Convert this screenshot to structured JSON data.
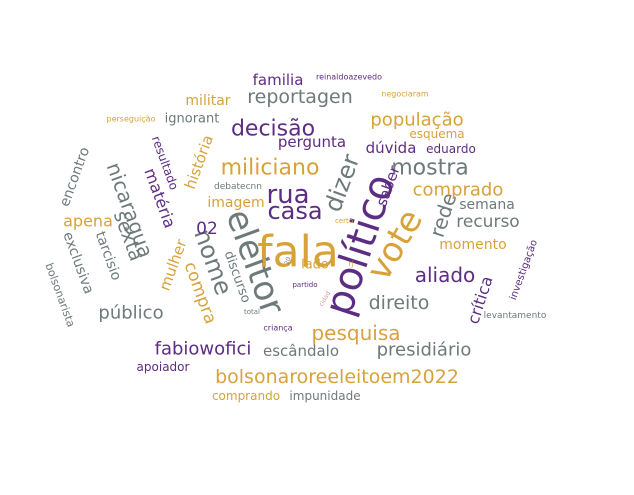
{
  "palette": {
    "purple": "#5c2d82",
    "gold": "#d8a23a",
    "gray": "#6e7a7a",
    "rose": "#d99aa0"
  },
  "words": [
    {
      "text": "fala",
      "color": "gold"
    },
    {
      "text": "político",
      "color": "purple"
    },
    {
      "text": "eleitor",
      "color": "gray"
    },
    {
      "text": "vote",
      "color": "gold"
    },
    {
      "text": "rua",
      "color": "purple"
    },
    {
      "text": "casa",
      "color": "purple"
    },
    {
      "text": "nome",
      "color": "gray"
    },
    {
      "text": "dizer",
      "color": "gray"
    },
    {
      "text": "miliciano",
      "color": "gold"
    },
    {
      "text": "decisão",
      "color": "purple"
    },
    {
      "text": "mostra",
      "color": "gray"
    },
    {
      "text": "rede",
      "color": "gray"
    },
    {
      "text": "nicaragua",
      "color": "gray"
    },
    {
      "text": "aliado",
      "color": "purple"
    },
    {
      "text": "pesquisa",
      "color": "gold"
    },
    {
      "text": "direito",
      "color": "gray"
    },
    {
      "text": "bolsonaroreeleitoem2022",
      "color": "gold"
    },
    {
      "text": "reportagen",
      "color": "gray"
    },
    {
      "text": "população",
      "color": "gold"
    },
    {
      "text": "comprado",
      "color": "gold"
    },
    {
      "text": "público",
      "color": "gray"
    },
    {
      "text": "fabiowofici",
      "color": "purple"
    },
    {
      "text": "presidiário",
      "color": "gray"
    },
    {
      "text": "sexta",
      "color": "gray"
    },
    {
      "text": "compra",
      "color": "gold"
    },
    {
      "text": "02",
      "color": "purple"
    },
    {
      "text": "recurso",
      "color": "gray"
    },
    {
      "text": "crítica",
      "color": "purple"
    },
    {
      "text": "apena",
      "color": "gold"
    },
    {
      "text": "escândalo",
      "color": "gray"
    },
    {
      "text": "familia",
      "color": "purple"
    },
    {
      "text": "pergunta",
      "color": "purple"
    },
    {
      "text": "dúvida",
      "color": "purple"
    },
    {
      "text": "história",
      "color": "gold"
    },
    {
      "text": "matéria",
      "color": "purple"
    },
    {
      "text": "mulher",
      "color": "gold"
    },
    {
      "text": "saber",
      "color": "purple"
    },
    {
      "text": "militar",
      "color": "gold"
    },
    {
      "text": "ignorant",
      "color": "gray"
    },
    {
      "text": "semana",
      "color": "gray"
    },
    {
      "text": "encontro",
      "color": "gray"
    },
    {
      "text": "exclusiva",
      "color": "gray"
    },
    {
      "text": "tarcisio",
      "color": "gray"
    },
    {
      "text": "momento",
      "color": "gold"
    },
    {
      "text": "imagem",
      "color": "gold"
    },
    {
      "text": "discurso",
      "color": "gray"
    },
    {
      "text": "lado",
      "color": "gold"
    },
    {
      "text": "esquema",
      "color": "gold"
    },
    {
      "text": "eduardo",
      "color": "purple"
    },
    {
      "text": "apoiador",
      "color": "purple"
    },
    {
      "text": "comprando",
      "color": "gold"
    },
    {
      "text": "impunidade",
      "color": "gray"
    },
    {
      "text": "resultado",
      "color": "purple"
    },
    {
      "text": "bolsonarista",
      "color": "gray"
    },
    {
      "text": "investigação",
      "color": "purple"
    },
    {
      "text": "levantamento",
      "color": "gray"
    },
    {
      "text": "debatecnn",
      "color": "gray"
    },
    {
      "text": "reinaldoazevedo",
      "color": "purple"
    },
    {
      "text": "negociaram",
      "color": "gold"
    },
    {
      "text": "perseguição",
      "color": "gold"
    },
    {
      "text": "criança",
      "color": "purple"
    },
    {
      "text": "total",
      "color": "gray"
    },
    {
      "text": "partido",
      "color": "purple"
    },
    {
      "text": "rj",
      "color": "gold"
    },
    {
      "text": "certo",
      "color": "gold"
    },
    {
      "text": "20",
      "color": "gray"
    },
    {
      "text": "cidad",
      "color": "rose"
    }
  ]
}
